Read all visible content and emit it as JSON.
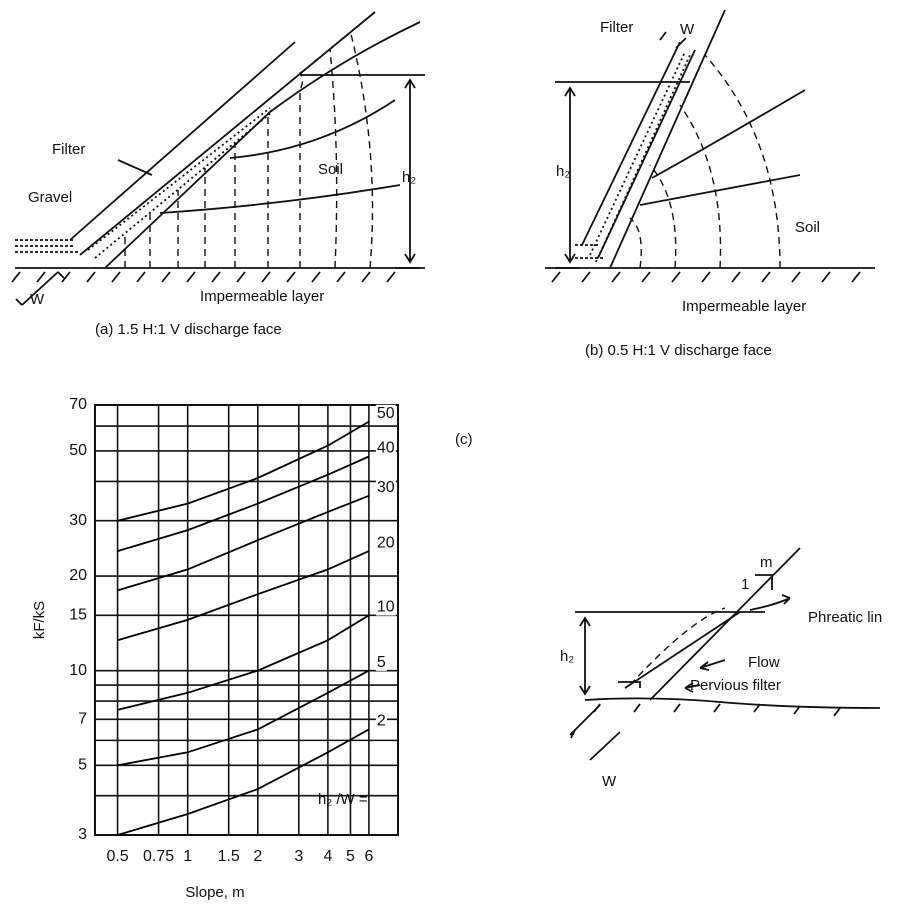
{
  "diagrams": {
    "a": {
      "filter": "Filter",
      "gravel": "Gravel",
      "soil": "Soil",
      "h": "h₂",
      "w": "W",
      "layer": "Impermeable layer",
      "caption": "(a) 1.5 H:1 V discharge face"
    },
    "b": {
      "filter": "Filter",
      "w": "W",
      "h": "h₂",
      "soil": "Soil",
      "layer": "Impermeable layer",
      "caption": "(b) 0.5 H:1 V discharge face"
    },
    "c": {
      "caption": "(c)",
      "m": "m",
      "one": "1",
      "phreatic": "Phreatic lin",
      "flow": "Flow",
      "filter": "Pervious filter",
      "h": "h₂",
      "w": "W"
    }
  },
  "chart_data": {
    "type": "line",
    "xlabel": "Slope, m",
    "ylabel": "kF/kS",
    "series_label": "h₂ /W =",
    "log_x": true,
    "log_y": true,
    "grid": true,
    "xlim": [
      0.4,
      8
    ],
    "xticks": [
      0.5,
      0.75,
      1,
      1.5,
      2,
      3,
      4,
      5,
      6
    ],
    "ylim": [
      3,
      70
    ],
    "yticks": [
      3,
      5,
      7,
      10,
      15,
      20,
      30,
      50,
      70
    ],
    "ygrid": [
      4,
      6,
      8,
      9,
      40,
      60
    ],
    "x": [
      0.5,
      1,
      2,
      4,
      6
    ],
    "series": [
      {
        "name": "50",
        "color": "#000000",
        "values": [
          30,
          34,
          41,
          52,
          62
        ]
      },
      {
        "name": "40",
        "color": "#000000",
        "values": [
          24,
          28,
          34,
          42,
          48
        ]
      },
      {
        "name": "30",
        "color": "#000000",
        "values": [
          18,
          21,
          26,
          32,
          36
        ]
      },
      {
        "name": "20",
        "color": "#000000",
        "values": [
          12.5,
          14.5,
          17.5,
          21,
          24
        ]
      },
      {
        "name": "10",
        "color": "#000000",
        "values": [
          7.5,
          8.5,
          10,
          12.5,
          15
        ]
      },
      {
        "name": "5",
        "color": "#000000",
        "values": [
          5,
          5.5,
          6.5,
          8.5,
          10
        ]
      },
      {
        "name": "2",
        "color": "#000000",
        "values": [
          3,
          3.5,
          4.2,
          5.5,
          6.5
        ]
      }
    ]
  }
}
